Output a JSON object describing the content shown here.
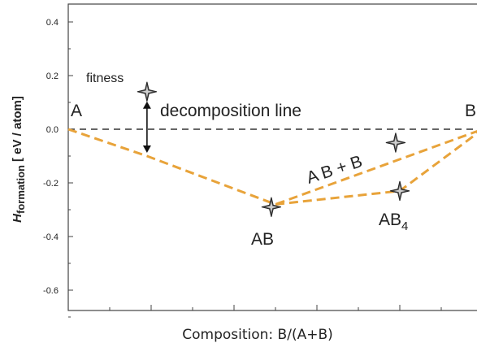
{
  "chart_data": {
    "type": "line",
    "title": "",
    "xlabel": "Composition: B/(A+B)",
    "ylabel_main": "H",
    "ylabel_sub": "formation",
    "ylabel_unit": "[ eV / atom]",
    "ylim": [
      -0.7,
      0.45
    ],
    "xlim": [
      0,
      1
    ],
    "yticks": [
      "0.4",
      "0.2",
      "0.0",
      "-0.2",
      "-0.4",
      "-0.6"
    ],
    "ytick_values": [
      0.4,
      0.2,
      0.0,
      -0.2,
      -0.4,
      -0.6
    ],
    "xticks": [
      0.0,
      0.1,
      0.2,
      0.3,
      0.4,
      0.5,
      0.6,
      0.7,
      0.8,
      0.9,
      1.0
    ],
    "decomposition_reference": {
      "y": 0.0,
      "style": "dashed",
      "label": "decomposition line"
    },
    "hull_line": {
      "color": "#E8A33A",
      "points": [
        [
          0.0,
          0.0
        ],
        [
          0.19,
          -0.1
        ],
        [
          0.5,
          -0.28
        ],
        [
          1.0,
          0.0
        ]
      ]
    },
    "segment_to_AB4": {
      "color": "#E8A33A",
      "points": [
        [
          0.5,
          -0.28
        ],
        [
          0.8,
          -0.23
        ],
        [
          1.0,
          0.0
        ]
      ]
    },
    "fitness_marker": {
      "x": 0.19,
      "y_top": 0.14,
      "y_bottom": -0.1,
      "label": "fitness"
    },
    "stars": [
      {
        "name": "fitness-star",
        "x": 0.19,
        "y": 0.14
      },
      {
        "name": "AB-star",
        "x": 0.49,
        "y": -0.29
      },
      {
        "name": "AB4-star",
        "x": 0.8,
        "y": -0.23
      },
      {
        "name": "AB-plus-B-star",
        "x": 0.79,
        "y": -0.05
      }
    ],
    "labels": {
      "A": "A",
      "B": "B",
      "AB": "AB",
      "AB4_base": "AB",
      "AB4_sub": "4",
      "ABplusB": "A B + B",
      "fitness": "fitness",
      "decomp": "decomposition line"
    },
    "grid": false,
    "legend": "none"
  }
}
